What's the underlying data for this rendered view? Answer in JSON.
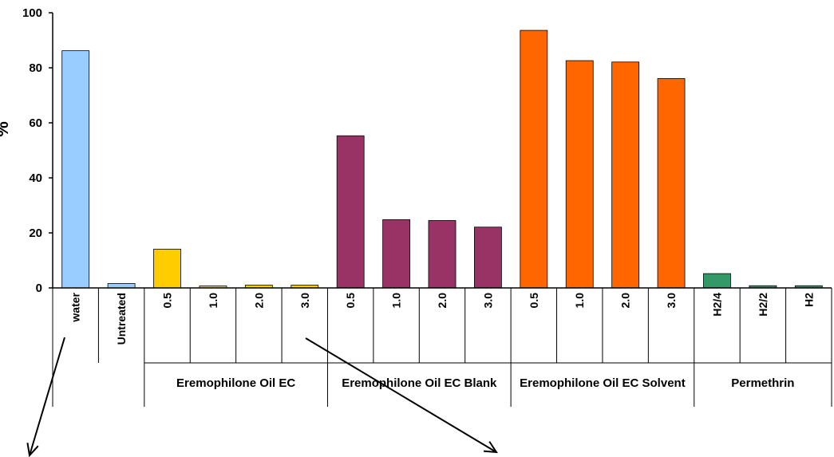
{
  "chart_data": {
    "type": "bar",
    "title": "",
    "xlabel": "",
    "ylabel": "%",
    "ylim": [
      0,
      100
    ],
    "yticks": [
      0,
      20,
      40,
      60,
      80,
      100
    ],
    "grid": false,
    "legend": "none",
    "categories": [
      "water",
      "Untreated",
      "0.5",
      "1.0",
      "2.0",
      "3.0",
      "0.5",
      "1.0",
      "2.0",
      "3.0",
      "0.5",
      "1.0",
      "2.0",
      "3.0",
      "H2/4",
      "H2/2",
      "H2"
    ],
    "values": [
      86.2,
      1.6,
      14.1,
      0.7,
      1.0,
      1.0,
      55.3,
      24.8,
      24.5,
      22.1,
      93.6,
      82.6,
      82.1,
      76.1,
      5.2,
      0.8,
      0.8
    ],
    "bar_colors": [
      "#99CCFF",
      "#99CCFF",
      "#FFCC00",
      "#FFCC00",
      "#FFCC00",
      "#FFCC00",
      "#993366",
      "#993366",
      "#993366",
      "#993366",
      "#FF6600",
      "#FF6600",
      "#FF6600",
      "#FF6600",
      "#339966",
      "#339966",
      "#339966"
    ],
    "groups": [
      {
        "label": "Eremophilone Oil EC",
        "start": 2,
        "end": 5
      },
      {
        "label": "Eremophilone Oil EC Blank",
        "start": 6,
        "end": 9
      },
      {
        "label": "Eremophilone Oil EC Solvent",
        "start": 10,
        "end": 13
      },
      {
        "label": "Permethrin",
        "start": 14,
        "end": 16
      }
    ]
  }
}
